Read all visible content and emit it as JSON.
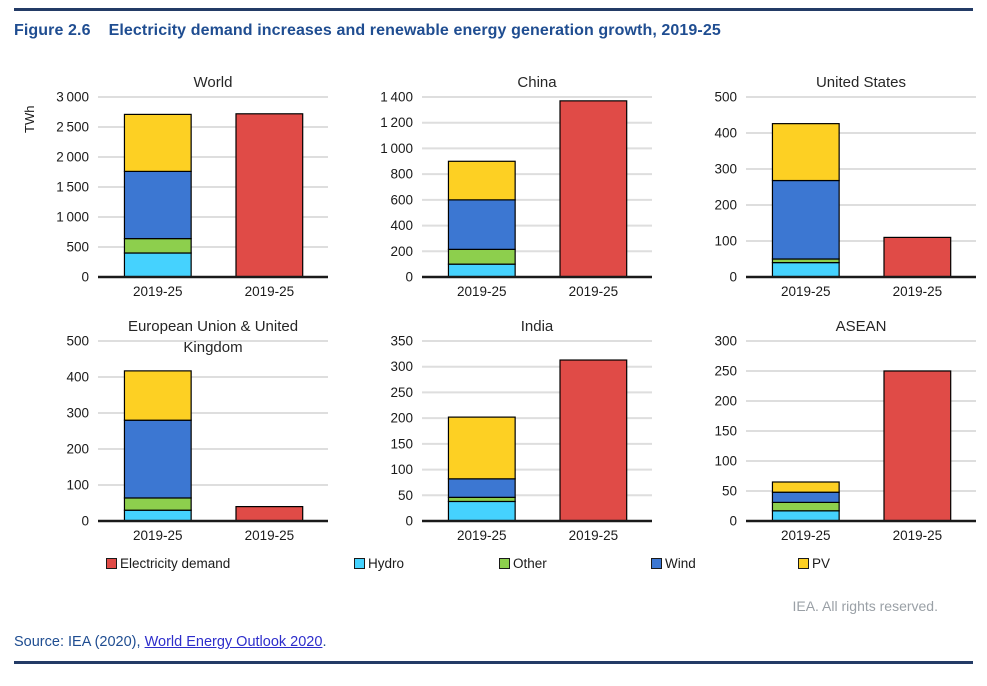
{
  "figure": {
    "label": "Figure 2.6",
    "title": "Electricity demand increases and renewable energy generation growth, 2019-25"
  },
  "chart_data": {
    "type": "bar",
    "unit": "TWh",
    "description": "Six subplots; each compares 2019-25 growth in renewable generation (stacked: Hydro, Other, Wind, PV) against 2019-25 electricity demand growth (single red bar).",
    "x_category": "2019-25",
    "stack_order": [
      "Hydro",
      "Other",
      "Wind",
      "PV"
    ],
    "colors": {
      "demand": "#e04b47",
      "Hydro": "#45d2fe",
      "Other": "#8dcf4d",
      "Wind": "#3c77d2",
      "PV": "#fdd023",
      "bar_stroke": "#000000",
      "gridline": "#dedede",
      "axis": "#1a1a1a"
    },
    "legend": [
      {
        "label": "Electricity demand",
        "color": "#e04b47"
      },
      {
        "label": "Hydro",
        "color": "#45d2fe"
      },
      {
        "label": "Other",
        "color": "#8dcf4d"
      },
      {
        "label": "Wind",
        "color": "#3c77d2"
      },
      {
        "label": "PV",
        "color": "#fdd023"
      }
    ],
    "legend_position": "bottom",
    "grid": true,
    "subplots": [
      {
        "title_lines": [
          "World"
        ],
        "ymax": 3000,
        "ystep": 500,
        "renewables": {
          "Hydro": 400,
          "Other": 240,
          "Wind": 1120,
          "PV": 950
        },
        "demand": 2720
      },
      {
        "title_lines": [
          "China"
        ],
        "ymax": 1400,
        "ystep": 200,
        "renewables": {
          "Hydro": 100,
          "Other": 115,
          "Wind": 385,
          "PV": 300
        },
        "demand": 1370
      },
      {
        "title_lines": [
          "United States"
        ],
        "ymax": 500,
        "ystep": 100,
        "renewables": {
          "Hydro": 40,
          "Other": 10,
          "Wind": 218,
          "PV": 158
        },
        "demand": 110
      },
      {
        "title_lines": [
          "European Union & United",
          "Kingdom"
        ],
        "ymax": 500,
        "ystep": 100,
        "renewables": {
          "Hydro": 30,
          "Other": 34,
          "Wind": 216,
          "PV": 137
        },
        "demand": 40
      },
      {
        "title_lines": [
          "India"
        ],
        "ymax": 350,
        "ystep": 50,
        "renewables": {
          "Hydro": 38,
          "Other": 8,
          "Wind": 36,
          "PV": 120
        },
        "demand": 313
      },
      {
        "title_lines": [
          "ASEAN"
        ],
        "ymax": 300,
        "ystep": 50,
        "renewables": {
          "Hydro": 17,
          "Other": 14,
          "Wind": 17,
          "PV": 17
        },
        "demand": 250
      }
    ]
  },
  "footer": {
    "rights": "IEA. All rights reserved.",
    "source_prefix": "Source: IEA (2020), ",
    "source_link": "World Energy Outlook 2020",
    "source_suffix": "."
  }
}
